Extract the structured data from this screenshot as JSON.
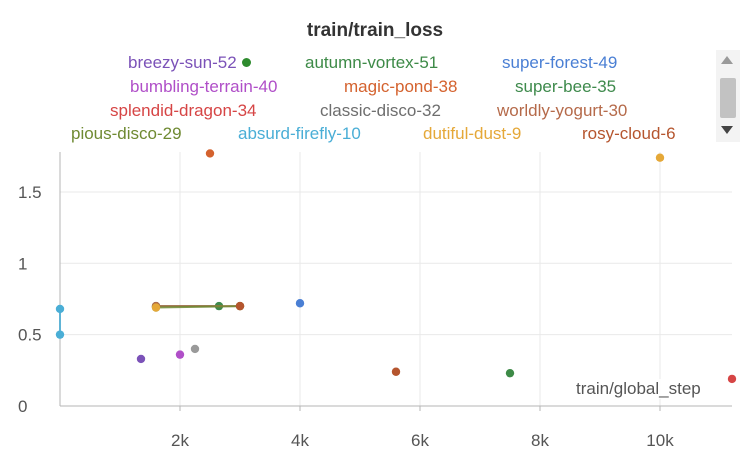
{
  "panel": {
    "title": "train/train_loss",
    "x_axis_label": "train/global_step"
  },
  "legend": [
    {
      "name": "breezy-sun-52",
      "color": "#7b52b8",
      "dot": true
    },
    {
      "name": "autumn-vortex-51",
      "color": "#3d8a47"
    },
    {
      "name": "super-forest-49",
      "color": "#4a7fd4"
    },
    {
      "name": "bumbling-terrain-40",
      "color": "#b04fc8"
    },
    {
      "name": "magic-pond-38",
      "color": "#d4622e"
    },
    {
      "name": "super-bee-35",
      "color": "#3e8a4c"
    },
    {
      "name": "splendid-dragon-34",
      "color": "#d64545"
    },
    {
      "name": "classic-disco-32",
      "color": "#6e6e6e"
    },
    {
      "name": "worldly-yogurt-30",
      "color": "#b56a4a"
    },
    {
      "name": "pious-disco-29",
      "color": "#6f8a32"
    },
    {
      "name": "absurd-firefly-10",
      "color": "#4aaed6"
    },
    {
      "name": "dutiful-dust-9",
      "color": "#e5a838"
    },
    {
      "name": "rosy-cloud-6",
      "color": "#b5552e"
    }
  ],
  "chart_data": {
    "type": "scatter",
    "title": "train/train_loss",
    "xlabel": "train/global_step",
    "ylabel": "",
    "xlim": [
      0,
      11200
    ],
    "ylim": [
      0,
      1.78
    ],
    "x_ticks": [
      {
        "v": 2000,
        "label": "2k"
      },
      {
        "v": 4000,
        "label": "4k"
      },
      {
        "v": 6000,
        "label": "6k"
      },
      {
        "v": 8000,
        "label": "8k"
      },
      {
        "v": 10000,
        "label": "10k"
      }
    ],
    "y_ticks": [
      {
        "v": 0,
        "label": "0"
      },
      {
        "v": 0.5,
        "label": "0.5"
      },
      {
        "v": 1,
        "label": "1"
      },
      {
        "v": 1.5,
        "label": "1.5"
      }
    ],
    "grid": true,
    "series": [
      {
        "name": "breezy-sun-52",
        "color": "#7b52b8",
        "points": [
          [
            1350,
            0.33
          ]
        ]
      },
      {
        "name": "autumn-vortex-51",
        "color": "#3d8a47",
        "points": [
          [
            7500,
            0.23
          ]
        ]
      },
      {
        "name": "super-forest-49",
        "color": "#4a7fd4",
        "points": [
          [
            4000,
            0.72
          ]
        ]
      },
      {
        "name": "bumbling-terrain-40",
        "color": "#b04fc8",
        "points": [
          [
            2000,
            0.36
          ]
        ]
      },
      {
        "name": "magic-pond-38",
        "color": "#d4622e",
        "points": [
          [
            2500,
            1.77
          ]
        ]
      },
      {
        "name": "super-bee-35",
        "color": "#3e8a4c",
        "points": [
          [
            1600,
            0.7
          ],
          [
            2650,
            0.7
          ]
        ],
        "line": true
      },
      {
        "name": "splendid-dragon-34",
        "color": "#d64545",
        "points": [
          [
            11200,
            0.19
          ]
        ]
      },
      {
        "name": "classic-disco-32",
        "color": "#9a9a9a",
        "points": [
          [
            2250,
            0.4
          ]
        ]
      },
      {
        "name": "worldly-yogurt-30",
        "color": "#b56a4a",
        "points": [
          [
            1600,
            0.7
          ],
          [
            3000,
            0.7
          ]
        ],
        "line": true
      },
      {
        "name": "pious-disco-29",
        "color": "#6f8a32",
        "points": [
          [
            1600,
            0.69
          ],
          [
            3000,
            0.7
          ]
        ],
        "line": true
      },
      {
        "name": "absurd-firefly-10",
        "color": "#4aaed6",
        "points": [
          [
            0,
            0.5
          ],
          [
            0,
            0.68
          ]
        ],
        "line": true
      },
      {
        "name": "dutiful-dust-9",
        "color": "#e5a838",
        "points": [
          [
            10000,
            1.74
          ],
          [
            1600,
            0.69
          ]
        ]
      },
      {
        "name": "rosy-cloud-6",
        "color": "#b5552e",
        "points": [
          [
            5600,
            0.24
          ],
          [
            3000,
            0.7
          ]
        ]
      }
    ]
  }
}
